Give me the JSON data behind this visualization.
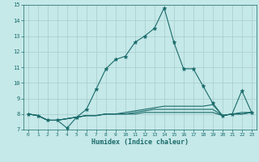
{
  "xlabel": "Humidex (Indice chaleur)",
  "bg_color": "#c5e8e8",
  "grid_color": "#a8cccc",
  "line_color": "#1a6b6b",
  "xlim": [
    -0.5,
    23.5
  ],
  "ylim": [
    7,
    15
  ],
  "xticks": [
    0,
    1,
    2,
    3,
    4,
    5,
    6,
    7,
    8,
    9,
    10,
    11,
    12,
    13,
    14,
    15,
    16,
    17,
    18,
    19,
    20,
    21,
    22,
    23
  ],
  "yticks": [
    7,
    8,
    9,
    10,
    11,
    12,
    13,
    14,
    15
  ],
  "series": [
    {
      "x": [
        0,
        1,
        2,
        3,
        4,
        5,
        6,
        7,
        8,
        9,
        10,
        11,
        12,
        13,
        14,
        15,
        16,
        17,
        18,
        19,
        20,
        21,
        22,
        23
      ],
      "y": [
        8.0,
        7.9,
        7.6,
        7.6,
        7.1,
        7.8,
        8.3,
        9.6,
        10.9,
        11.5,
        11.7,
        12.6,
        13.0,
        13.5,
        14.8,
        12.6,
        10.9,
        10.9,
        9.8,
        8.7,
        7.9,
        8.0,
        9.5,
        8.1
      ],
      "marker": "*"
    },
    {
      "x": [
        0,
        1,
        2,
        3,
        4,
        5,
        6,
        7,
        8,
        9,
        10,
        11,
        12,
        13,
        14,
        15,
        16,
        17,
        18,
        19,
        20,
        21,
        22,
        23
      ],
      "y": [
        8.0,
        7.9,
        7.6,
        7.6,
        7.7,
        7.8,
        7.9,
        7.9,
        8.0,
        8.0,
        8.1,
        8.2,
        8.3,
        8.4,
        8.5,
        8.5,
        8.5,
        8.5,
        8.5,
        8.6,
        7.9,
        8.0,
        8.1,
        8.1
      ],
      "marker": null
    },
    {
      "x": [
        0,
        1,
        2,
        3,
        4,
        5,
        6,
        7,
        8,
        9,
        10,
        11,
        12,
        13,
        14,
        15,
        16,
        17,
        18,
        19,
        20,
        21,
        22,
        23
      ],
      "y": [
        8.0,
        7.9,
        7.6,
        7.6,
        7.7,
        7.8,
        7.9,
        7.9,
        8.0,
        8.0,
        8.0,
        8.1,
        8.2,
        8.3,
        8.3,
        8.3,
        8.3,
        8.3,
        8.3,
        8.3,
        7.9,
        8.0,
        8.0,
        8.1
      ],
      "marker": null
    },
    {
      "x": [
        0,
        1,
        2,
        3,
        4,
        5,
        6,
        7,
        8,
        9,
        10,
        11,
        12,
        13,
        14,
        15,
        16,
        17,
        18,
        19,
        20,
        21,
        22,
        23
      ],
      "y": [
        8.0,
        7.9,
        7.6,
        7.6,
        7.7,
        7.8,
        7.9,
        7.9,
        8.0,
        8.0,
        8.0,
        8.0,
        8.1,
        8.1,
        8.1,
        8.1,
        8.1,
        8.1,
        8.1,
        8.1,
        7.9,
        8.0,
        8.0,
        8.1
      ],
      "marker": null
    }
  ]
}
